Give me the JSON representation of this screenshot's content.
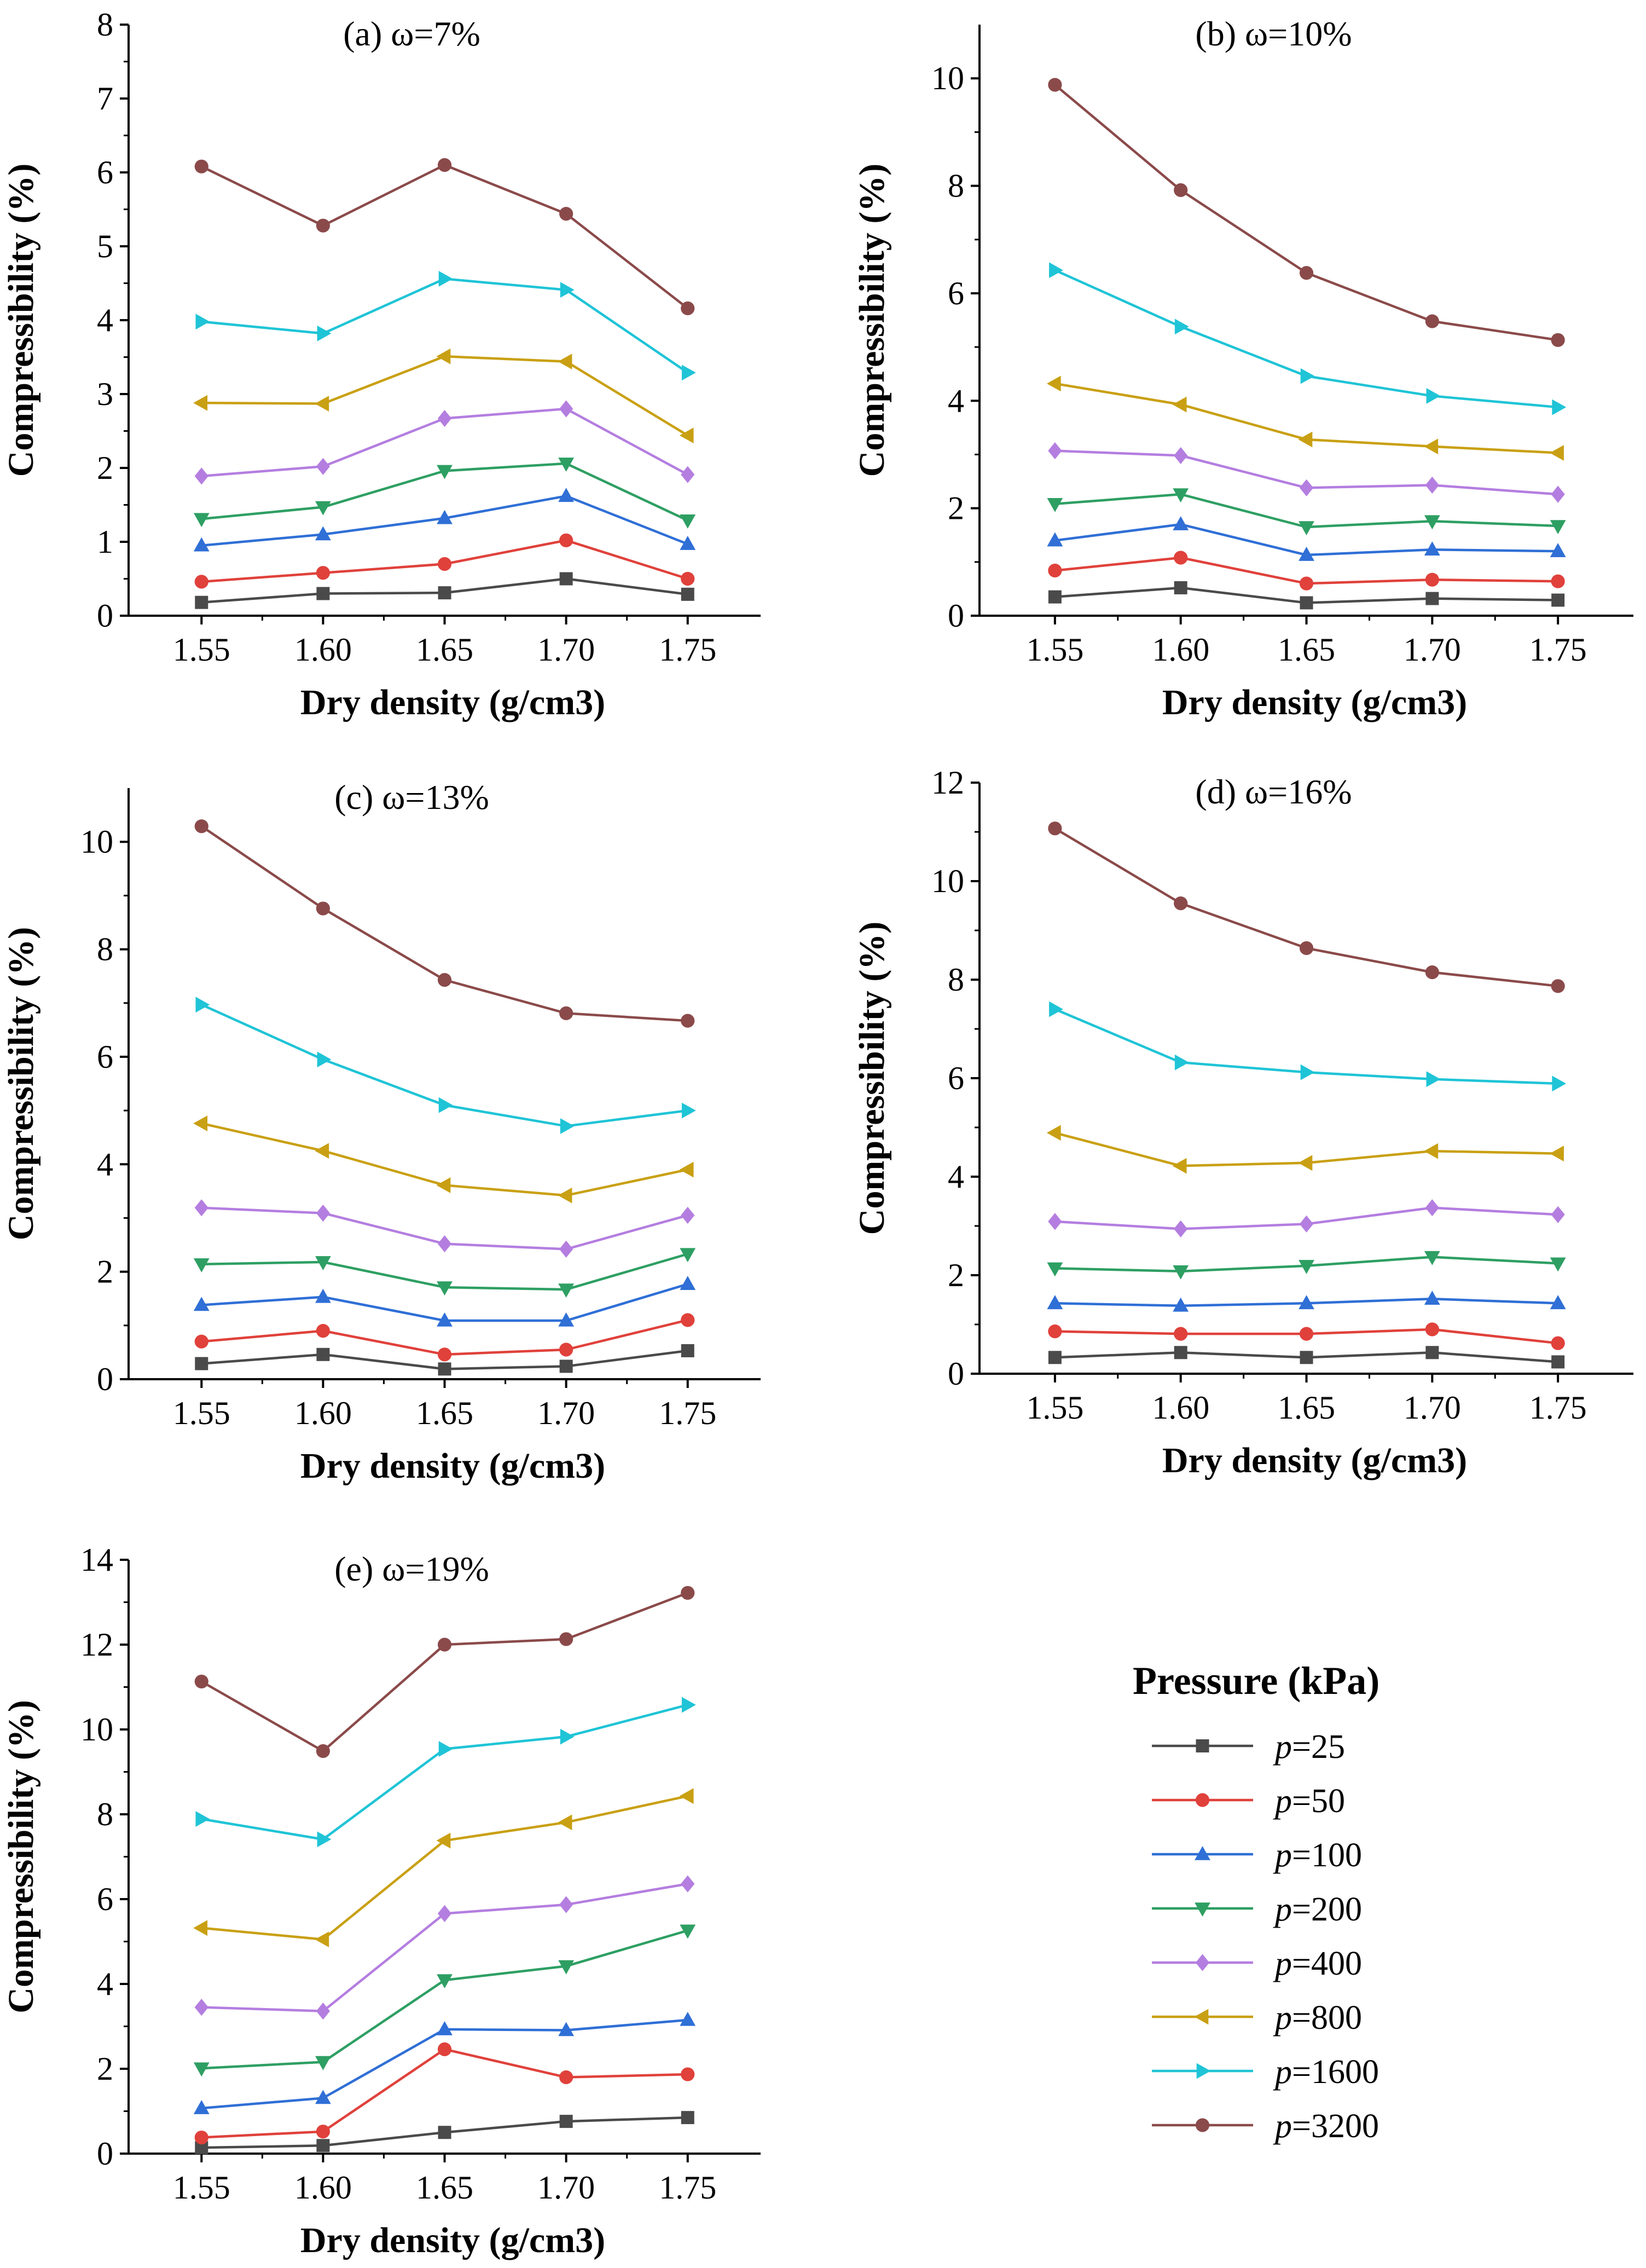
{
  "legend": {
    "title": "Pressure (kPa)",
    "var": "p",
    "entries": [
      {
        "label": "p=25",
        "value": "25",
        "color": "#4a4a4a",
        "marker": "square"
      },
      {
        "label": "p=50",
        "value": "50",
        "color": "#e0413b",
        "marker": "circle"
      },
      {
        "label": "p=100",
        "value": "100",
        "color": "#2f6fd6",
        "marker": "triangle-up"
      },
      {
        "label": "p=200",
        "value": "200",
        "color": "#2e9f63",
        "marker": "triangle-down"
      },
      {
        "label": "p=400",
        "value": "400",
        "color": "#b47ee0",
        "marker": "diamond"
      },
      {
        "label": "p=800",
        "value": "800",
        "color": "#c9a013",
        "marker": "triangle-left"
      },
      {
        "label": "p=1600",
        "value": "1600",
        "color": "#1fc4d6",
        "marker": "triangle-right"
      },
      {
        "label": "p=3200",
        "value": "3200",
        "color": "#8b4a4a",
        "marker": "circle"
      }
    ]
  },
  "chart_data": [
    {
      "type": "line",
      "title": "(a) ω=7%",
      "xlabel": "Dry density (g/cm3)",
      "ylabel": "Compressibility (%)",
      "x": [
        1.55,
        1.6,
        1.65,
        1.7,
        1.75
      ],
      "xticks": [
        "1.55",
        "1.60",
        "1.65",
        "1.70",
        "1.75"
      ],
      "ylim": [
        0,
        8
      ],
      "yticks": [
        0,
        1,
        2,
        3,
        4,
        5,
        6,
        7,
        8
      ],
      "series": [
        {
          "name": "p=25",
          "values": [
            0.18,
            0.3,
            0.31,
            0.5,
            0.29
          ]
        },
        {
          "name": "p=50",
          "values": [
            0.46,
            0.58,
            0.7,
            1.02,
            0.5
          ]
        },
        {
          "name": "p=100",
          "values": [
            0.95,
            1.1,
            1.32,
            1.62,
            0.97
          ]
        },
        {
          "name": "p=200",
          "values": [
            1.31,
            1.47,
            1.96,
            2.06,
            1.29
          ]
        },
        {
          "name": "p=400",
          "values": [
            1.89,
            2.02,
            2.67,
            2.8,
            1.91
          ]
        },
        {
          "name": "p=800",
          "values": [
            2.88,
            2.87,
            3.51,
            3.44,
            2.44
          ]
        },
        {
          "name": "p=1600",
          "values": [
            3.98,
            3.82,
            4.56,
            4.41,
            3.29
          ]
        },
        {
          "name": "p=3200",
          "values": [
            6.08,
            5.28,
            6.1,
            5.44,
            4.16
          ]
        }
      ]
    },
    {
      "type": "line",
      "title": "(b) ω=10%",
      "xlabel": "Dry density (g/cm3)",
      "ylabel": "Compressibility (%)",
      "x": [
        1.55,
        1.6,
        1.65,
        1.7,
        1.75
      ],
      "xticks": [
        "1.55",
        "1.60",
        "1.65",
        "1.70",
        "1.75"
      ],
      "ylim": [
        0,
        11
      ],
      "yticks": [
        0,
        2,
        4,
        6,
        8,
        10
      ],
      "series": [
        {
          "name": "p=25",
          "values": [
            0.35,
            0.52,
            0.24,
            0.32,
            0.29
          ]
        },
        {
          "name": "p=50",
          "values": [
            0.84,
            1.08,
            0.6,
            0.67,
            0.64
          ]
        },
        {
          "name": "p=100",
          "values": [
            1.4,
            1.7,
            1.13,
            1.23,
            1.2
          ]
        },
        {
          "name": "p=200",
          "values": [
            2.08,
            2.26,
            1.65,
            1.76,
            1.67
          ]
        },
        {
          "name": "p=400",
          "values": [
            3.07,
            2.98,
            2.38,
            2.43,
            2.26
          ]
        },
        {
          "name": "p=800",
          "values": [
            4.32,
            3.93,
            3.28,
            3.15,
            3.03
          ]
        },
        {
          "name": "p=1600",
          "values": [
            6.43,
            5.38,
            4.46,
            4.09,
            3.88
          ]
        },
        {
          "name": "p=3200",
          "values": [
            9.88,
            7.92,
            6.38,
            5.48,
            5.13
          ]
        }
      ]
    },
    {
      "type": "line",
      "title": "(c) ω=13%",
      "xlabel": "Dry density (g/cm3)",
      "ylabel": "Compressibility (%)",
      "x": [
        1.55,
        1.6,
        1.65,
        1.7,
        1.75
      ],
      "xticks": [
        "1.55",
        "1.60",
        "1.65",
        "1.70",
        "1.75"
      ],
      "ylim": [
        0,
        11
      ],
      "yticks": [
        0,
        2,
        4,
        6,
        8,
        10
      ],
      "series": [
        {
          "name": "p=25",
          "values": [
            0.29,
            0.46,
            0.19,
            0.24,
            0.53
          ]
        },
        {
          "name": "p=50",
          "values": [
            0.7,
            0.9,
            0.46,
            0.55,
            1.1
          ]
        },
        {
          "name": "p=100",
          "values": [
            1.38,
            1.53,
            1.09,
            1.09,
            1.77
          ]
        },
        {
          "name": "p=200",
          "values": [
            2.14,
            2.18,
            1.71,
            1.67,
            2.33
          ]
        },
        {
          "name": "p=400",
          "values": [
            3.19,
            3.09,
            2.52,
            2.42,
            3.05
          ]
        },
        {
          "name": "p=800",
          "values": [
            4.76,
            4.25,
            3.61,
            3.42,
            3.9
          ]
        },
        {
          "name": "p=1600",
          "values": [
            6.97,
            5.95,
            5.1,
            4.71,
            5.0
          ]
        },
        {
          "name": "p=3200",
          "values": [
            10.29,
            8.76,
            7.43,
            6.81,
            6.67
          ]
        }
      ]
    },
    {
      "type": "line",
      "title": "(d) ω=16%",
      "xlabel": "Dry density (g/cm3)",
      "ylabel": "Compressibility (%)",
      "x": [
        1.55,
        1.6,
        1.65,
        1.7,
        1.75
      ],
      "xticks": [
        "1.55",
        "1.60",
        "1.65",
        "1.70",
        "1.75"
      ],
      "ylim": [
        0,
        12
      ],
      "yticks": [
        0,
        2,
        4,
        6,
        8,
        10,
        12
      ],
      "series": [
        {
          "name": "p=25",
          "values": [
            0.33,
            0.43,
            0.33,
            0.43,
            0.24
          ]
        },
        {
          "name": "p=50",
          "values": [
            0.86,
            0.81,
            0.81,
            0.9,
            0.62
          ]
        },
        {
          "name": "p=100",
          "values": [
            1.43,
            1.38,
            1.43,
            1.52,
            1.43
          ]
        },
        {
          "name": "p=200",
          "values": [
            2.14,
            2.08,
            2.19,
            2.37,
            2.24
          ]
        },
        {
          "name": "p=400",
          "values": [
            3.09,
            2.94,
            3.04,
            3.37,
            3.23
          ]
        },
        {
          "name": "p=800",
          "values": [
            4.89,
            4.22,
            4.28,
            4.52,
            4.47
          ]
        },
        {
          "name": "p=1600",
          "values": [
            7.4,
            6.32,
            6.12,
            5.98,
            5.89
          ]
        },
        {
          "name": "p=3200",
          "values": [
            11.07,
            9.55,
            8.64,
            8.15,
            7.87
          ]
        }
      ]
    },
    {
      "type": "line",
      "title": "(e) ω=19%",
      "xlabel": "Dry density (g/cm3)",
      "ylabel": "Compressibility (%)",
      "x": [
        1.55,
        1.6,
        1.65,
        1.7,
        1.75
      ],
      "xticks": [
        "1.55",
        "1.60",
        "1.65",
        "1.70",
        "1.75"
      ],
      "ylim": [
        0,
        14
      ],
      "yticks": [
        0,
        2,
        4,
        6,
        8,
        10,
        12,
        14
      ],
      "series": [
        {
          "name": "p=25",
          "values": [
            0.14,
            0.19,
            0.5,
            0.76,
            0.85
          ]
        },
        {
          "name": "p=50",
          "values": [
            0.38,
            0.52,
            2.46,
            1.8,
            1.87
          ]
        },
        {
          "name": "p=100",
          "values": [
            1.07,
            1.31,
            2.93,
            2.91,
            3.15
          ]
        },
        {
          "name": "p=200",
          "values": [
            2.01,
            2.16,
            4.09,
            4.42,
            5.26
          ]
        },
        {
          "name": "p=400",
          "values": [
            3.45,
            3.36,
            5.66,
            5.87,
            6.36
          ]
        },
        {
          "name": "p=800",
          "values": [
            5.32,
            5.05,
            7.38,
            7.81,
            8.43
          ]
        },
        {
          "name": "p=1600",
          "values": [
            7.89,
            7.41,
            9.54,
            9.83,
            10.58
          ]
        },
        {
          "name": "p=3200",
          "values": [
            11.13,
            9.49,
            12.0,
            12.13,
            13.22
          ]
        }
      ]
    }
  ]
}
